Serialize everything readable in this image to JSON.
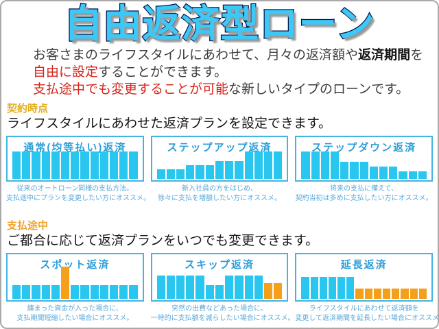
{
  "page": {
    "title": "自由返済型ローン"
  },
  "intro": {
    "line1_pre": "お客さまのライフスタイルにあわせて、月々の返済額や",
    "line1_bold": "返済期間",
    "line1_post": "を",
    "line2_red": "自由に設定",
    "line2_rest": "することができます。",
    "line3_red": "支払途中でも変更することが可能",
    "line3_rest": "な新しいタイプのローンです。"
  },
  "sections": [
    {
      "heading": "契約時点",
      "lead": "ライフスタイルにあわせた返済プランを設定できます。",
      "cards": [
        {
          "title": "通常(均等払い)返済",
          "caption1": "従来のオートローン同様の支払方法。",
          "caption2": "支払途中にプランを変更したい方にオススメ。"
        },
        {
          "title": "ステップアップ返済",
          "caption1": "新入社員の方をはじめ、",
          "caption2": "徐々に支払を増額したい方にオススメ。"
        },
        {
          "title": "ステップダウン返済",
          "caption1": "将来の支払に備えて、",
          "caption2": "契約当初は多めに支払したい方にオススメ。"
        }
      ]
    },
    {
      "heading": "支払途中",
      "lead": "ご都合に応じて返済プランをいつでも変更できます。",
      "cards": [
        {
          "title": "スポット返済",
          "caption1": "纏まった資金が入った場合に、",
          "caption2": "支払期間短縮したい場合にオススメ。"
        },
        {
          "title": "スキップ返済",
          "caption1": "突然の出費などあった場合に、",
          "caption2": "一時的に支払額を減らしたい場合にオススメ。"
        },
        {
          "title": "延長返済",
          "caption1": "ライフスタイルにあわせて返済額を",
          "caption2": "変更して返済期間を延長したい場合にオススメ。"
        }
      ]
    }
  ],
  "colors": {
    "cyan": "#29c6f0",
    "orange": "#f4a01a",
    "title_fill": "#3cc9f8",
    "red_text": "#d6251c",
    "gold_heading": "#e3ae1f",
    "orange_heading": "#f0a42c",
    "card_border": "#43b4e4",
    "card_title_blue": "#2b9ed8",
    "caption_blue": "#57a9db"
  },
  "chart_data": [
    {
      "type": "bar",
      "title": "通常(均等払い)返済",
      "note": "equal monthly payments",
      "bars": [
        {
          "h": 1,
          "c": "cyan"
        },
        {
          "h": 1,
          "c": "cyan"
        },
        {
          "h": 1,
          "c": "cyan"
        },
        {
          "h": 1,
          "c": "cyan"
        },
        {
          "h": 1,
          "c": "cyan"
        },
        {
          "h": 1,
          "c": "cyan"
        },
        {
          "h": 1,
          "c": "cyan"
        },
        {
          "h": 1,
          "c": "cyan"
        },
        {
          "h": 1,
          "c": "cyan"
        },
        {
          "h": 1,
          "c": "cyan"
        },
        {
          "h": 1,
          "c": "cyan"
        },
        {
          "h": 1,
          "c": "cyan"
        },
        {
          "h": 1,
          "c": "cyan"
        }
      ]
    },
    {
      "type": "bar",
      "title": "ステップアップ返済",
      "note": "payments step up over time",
      "bars": [
        {
          "h": 0.35,
          "c": "cyan"
        },
        {
          "h": 0.35,
          "c": "cyan"
        },
        {
          "h": 0.35,
          "c": "cyan"
        },
        {
          "h": 0.5,
          "c": "cyan"
        },
        {
          "h": 0.5,
          "c": "cyan"
        },
        {
          "h": 0.5,
          "c": "cyan"
        },
        {
          "h": 0.65,
          "c": "cyan"
        },
        {
          "h": 0.65,
          "c": "cyan"
        },
        {
          "h": 0.65,
          "c": "cyan"
        },
        {
          "h": 1,
          "c": "cyan"
        },
        {
          "h": 1,
          "c": "cyan"
        },
        {
          "h": 1,
          "c": "cyan"
        },
        {
          "h": 1,
          "c": "cyan"
        }
      ]
    },
    {
      "type": "bar",
      "title": "ステップダウン返済",
      "note": "payments step down over time",
      "bars": [
        {
          "h": 1,
          "c": "cyan"
        },
        {
          "h": 1,
          "c": "cyan"
        },
        {
          "h": 1,
          "c": "cyan"
        },
        {
          "h": 1,
          "c": "cyan"
        },
        {
          "h": 0.62,
          "c": "cyan"
        },
        {
          "h": 0.62,
          "c": "cyan"
        },
        {
          "h": 0.62,
          "c": "cyan"
        },
        {
          "h": 0.46,
          "c": "cyan"
        },
        {
          "h": 0.46,
          "c": "cyan"
        },
        {
          "h": 0.46,
          "c": "cyan"
        },
        {
          "h": 0.28,
          "c": "cyan"
        },
        {
          "h": 0.28,
          "c": "cyan"
        },
        {
          "h": 0.28,
          "c": "cyan"
        }
      ]
    },
    {
      "type": "bar",
      "title": "スポット返済",
      "note": "one large lump-sum payment (orange)",
      "bars": [
        {
          "h": 0.43,
          "c": "cyan"
        },
        {
          "h": 0.43,
          "c": "cyan"
        },
        {
          "h": 0.43,
          "c": "cyan"
        },
        {
          "h": 0.43,
          "c": "cyan"
        },
        {
          "h": 0.43,
          "c": "cyan"
        },
        {
          "h": 1,
          "c": "orange"
        },
        {
          "h": 0.43,
          "c": "cyan"
        },
        {
          "h": 0.43,
          "c": "cyan"
        },
        {
          "h": 0.43,
          "c": "cyan"
        },
        {
          "h": 0.43,
          "c": "cyan"
        },
        {
          "h": 0.43,
          "c": "cyan"
        },
        {
          "h": 0.43,
          "c": "cyan"
        },
        {
          "h": 0.43,
          "c": "cyan"
        }
      ]
    },
    {
      "type": "bar",
      "title": "スキップ返済",
      "note": "temporarily reduced payments, extended end (orange)",
      "bars": [
        {
          "h": 0.72,
          "c": "cyan"
        },
        {
          "h": 0.72,
          "c": "cyan"
        },
        {
          "h": 0.72,
          "c": "cyan"
        },
        {
          "h": 0.72,
          "c": "cyan"
        },
        {
          "h": 0.72,
          "c": "cyan"
        },
        {
          "h": 0.42,
          "c": "cyan"
        },
        {
          "h": 0.42,
          "c": "cyan"
        },
        {
          "h": 0.72,
          "c": "cyan"
        },
        {
          "h": 0.72,
          "c": "cyan"
        },
        {
          "h": 0.72,
          "c": "cyan"
        },
        {
          "h": 0.72,
          "c": "cyan"
        },
        {
          "h": 0.48,
          "c": "orange"
        },
        {
          "h": 0.48,
          "c": "orange"
        }
      ]
    },
    {
      "type": "bar",
      "title": "延長返済",
      "note": "reduced payments with extended term (orange)",
      "bars": [
        {
          "h": 0.68,
          "c": "cyan"
        },
        {
          "h": 0.68,
          "c": "cyan"
        },
        {
          "h": 0.68,
          "c": "cyan"
        },
        {
          "h": 0.68,
          "c": "cyan"
        },
        {
          "h": 0.68,
          "c": "cyan"
        },
        {
          "h": 0.68,
          "c": "cyan"
        },
        {
          "h": 0.33,
          "c": "orange"
        },
        {
          "h": 0.33,
          "c": "orange"
        },
        {
          "h": 0.33,
          "c": "orange"
        },
        {
          "h": 0.33,
          "c": "orange"
        },
        {
          "h": 0.33,
          "c": "orange"
        },
        {
          "h": 0.33,
          "c": "orange"
        },
        {
          "h": 0.33,
          "c": "orange"
        },
        {
          "h": 0.33,
          "c": "orange"
        }
      ]
    }
  ]
}
